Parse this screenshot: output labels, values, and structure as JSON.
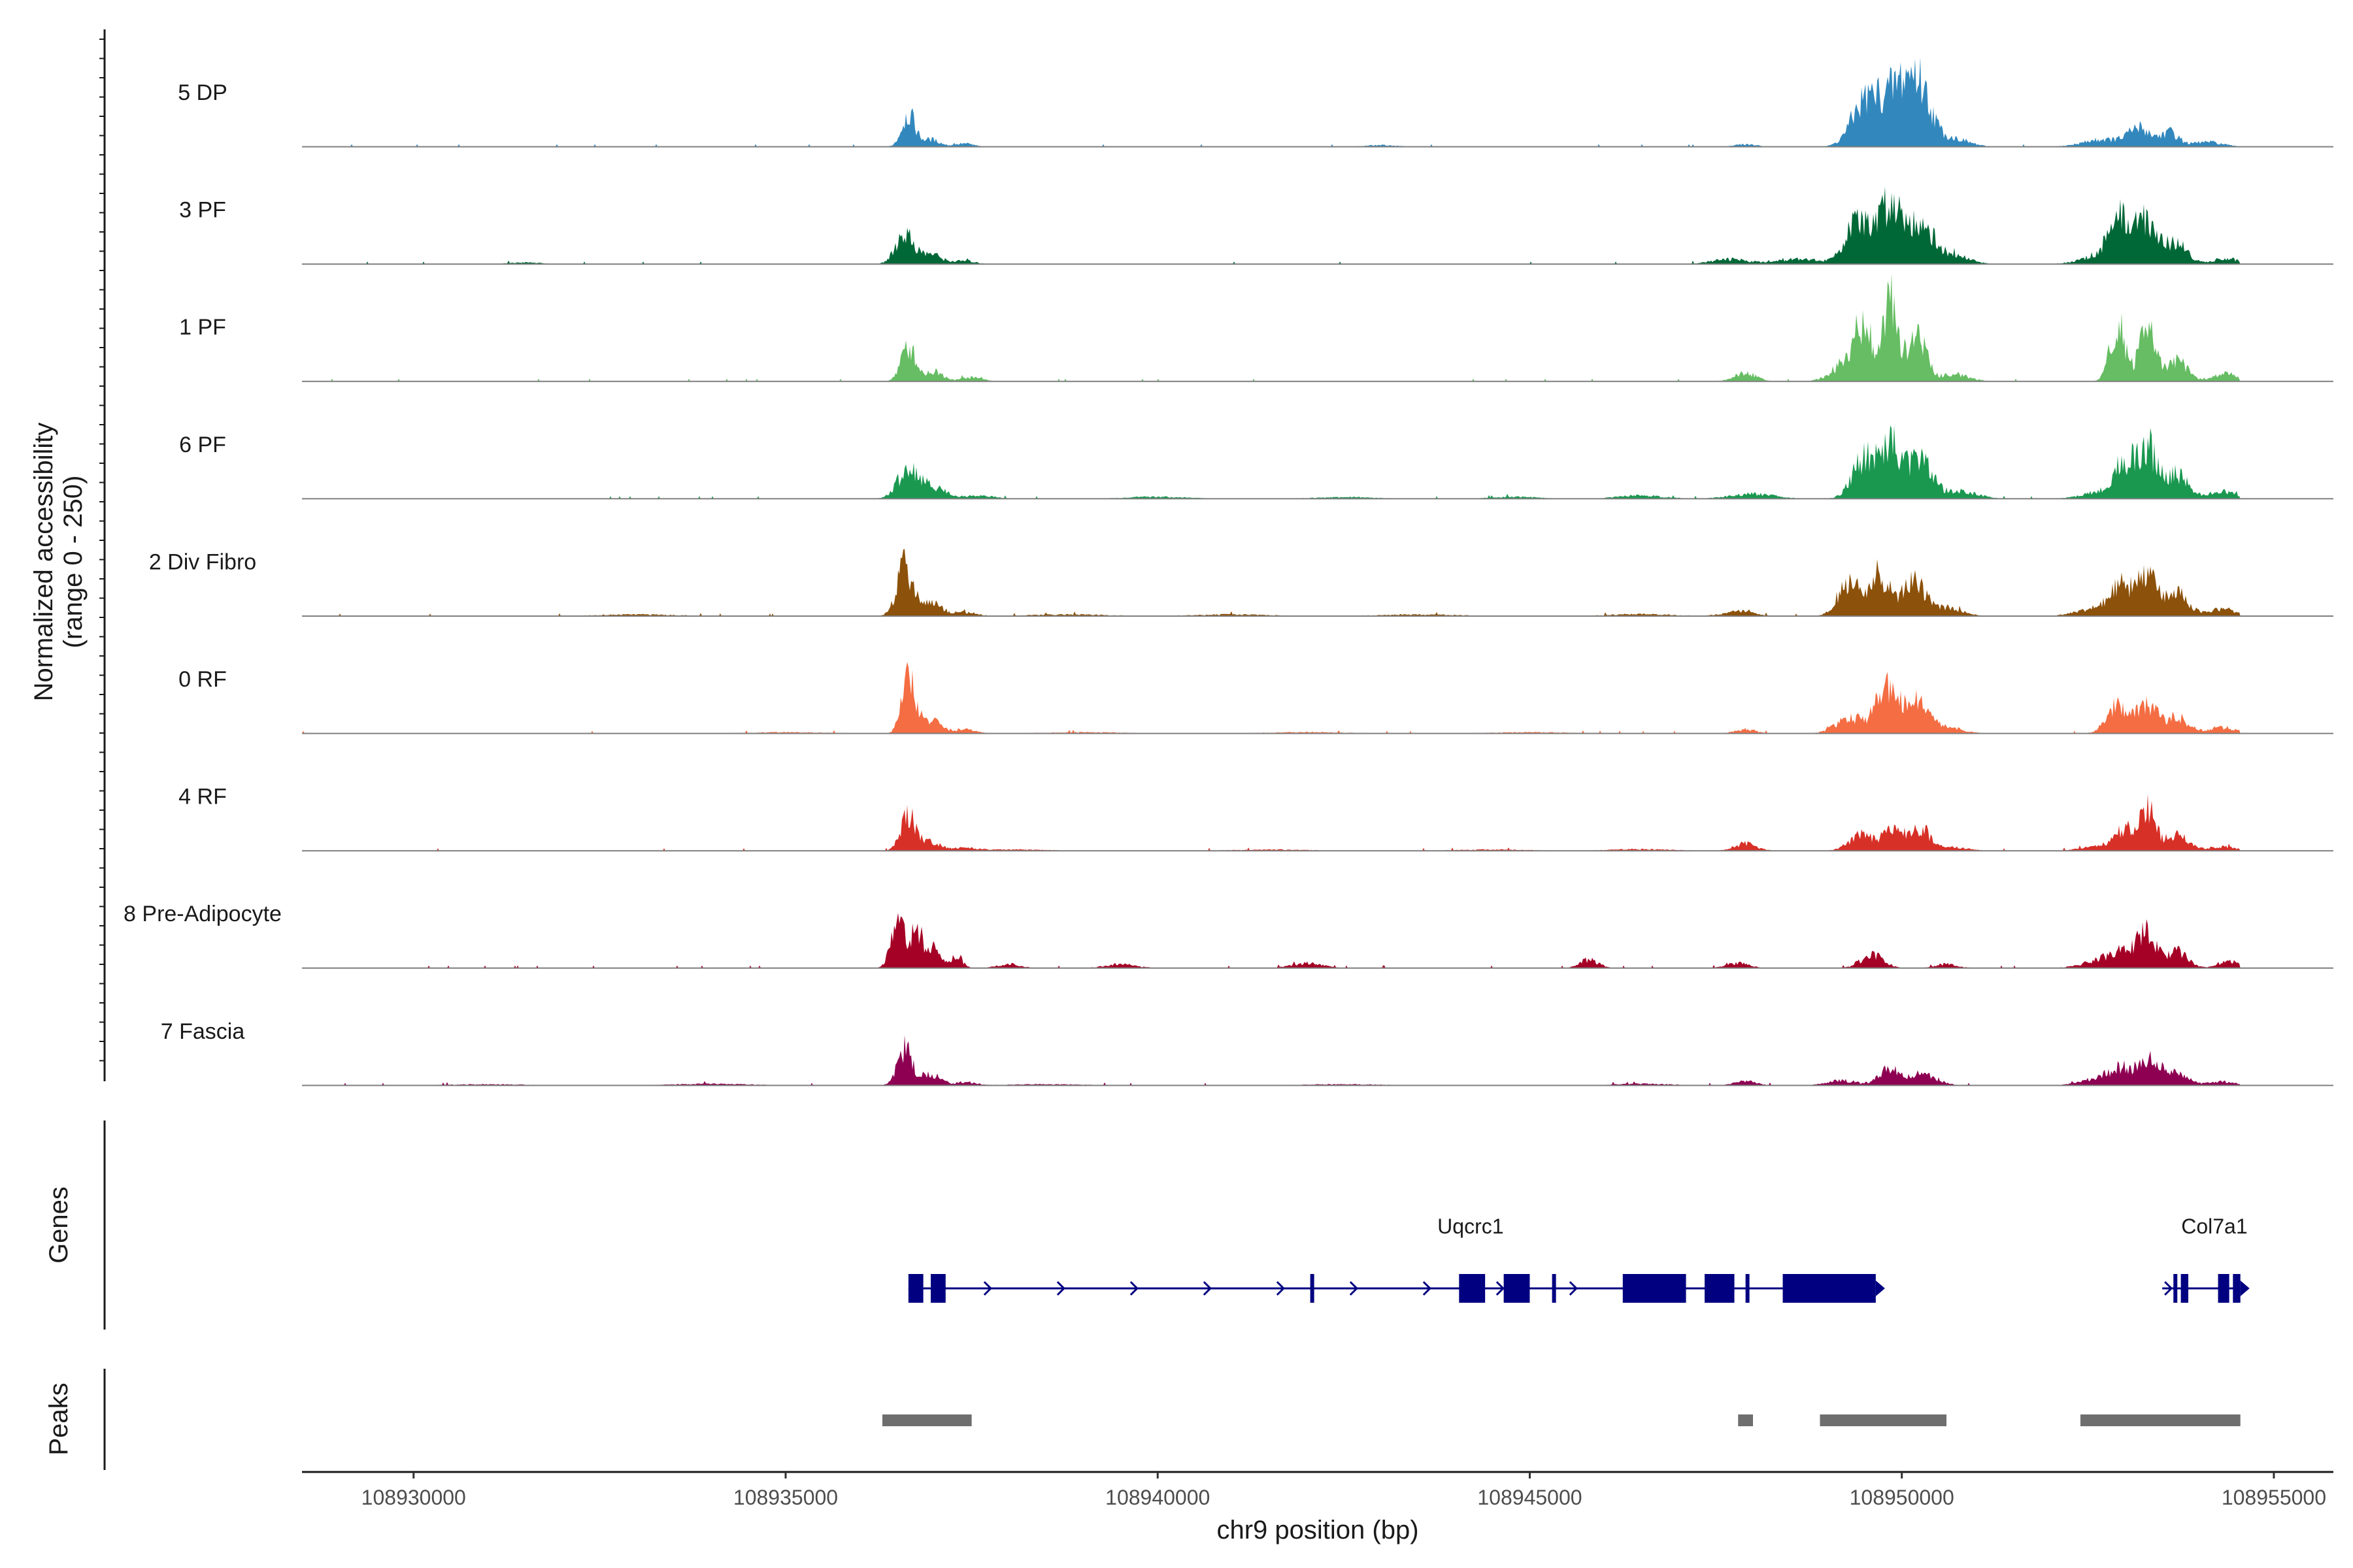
{
  "chart_data": {
    "type": "area",
    "title": "",
    "xlabel": "chr9 position (bp)",
    "ylabel_line1": "Normalized accessibility",
    "ylabel_line2": "(range 0 - 250)",
    "xlim": [
      108928500,
      108955800
    ],
    "ylim": [
      0,
      250
    ],
    "xticks": [
      108930000,
      108935000,
      108940000,
      108945000,
      108950000,
      108955000
    ],
    "xtick_labels": [
      "108930000",
      "108935000",
      "108940000",
      "108945000",
      "108950000",
      "108955000"
    ],
    "coverage_extent": [
      108928500,
      108954550
    ],
    "series": [
      {
        "name": "5 DP",
        "color": "#3288bd",
        "peaks": [
          [
            108936650,
            80,
            90
          ],
          [
            108936950,
            18,
            120
          ],
          [
            108937400,
            8,
            120
          ],
          [
            108943000,
            4,
            200
          ],
          [
            108947900,
            6,
            150
          ],
          [
            108949500,
            105,
            180
          ],
          [
            108949950,
            140,
            220
          ],
          [
            108950250,
            110,
            160
          ],
          [
            108950700,
            20,
            200
          ],
          [
            108952700,
            18,
            260
          ],
          [
            108953200,
            45,
            150
          ],
          [
            108953600,
            35,
            120
          ],
          [
            108954100,
            12,
            200
          ]
        ]
      },
      {
        "name": "3 PF",
        "color": "#006837",
        "peaks": [
          [
            108936600,
            75,
            120
          ],
          [
            108936950,
            25,
            140
          ],
          [
            108937400,
            8,
            140
          ],
          [
            108931500,
            4,
            200
          ],
          [
            108947700,
            12,
            250
          ],
          [
            108948600,
            14,
            250
          ],
          [
            108949400,
            100,
            170
          ],
          [
            108949850,
            150,
            160
          ],
          [
            108950250,
            100,
            170
          ],
          [
            108950700,
            22,
            200
          ],
          [
            108952700,
            24,
            250
          ],
          [
            108952950,
            100,
            140
          ],
          [
            108953300,
            105,
            140
          ],
          [
            108953700,
            55,
            140
          ],
          [
            108954350,
            15,
            160
          ]
        ]
      },
      {
        "name": "1 PF",
        "color": "#66bd63",
        "peaks": [
          [
            108936650,
            85,
            100
          ],
          [
            108937000,
            25,
            120
          ],
          [
            108937500,
            10,
            150
          ],
          [
            108947900,
            20,
            150
          ],
          [
            108949300,
            55,
            200
          ],
          [
            108949500,
            110,
            120
          ],
          [
            108949850,
            200,
            100
          ],
          [
            108950200,
            120,
            120
          ],
          [
            108950700,
            18,
            200
          ],
          [
            108952900,
            145,
            100
          ],
          [
            108953300,
            130,
            110
          ],
          [
            108953700,
            50,
            140
          ],
          [
            108954350,
            20,
            150
          ]
        ]
      },
      {
        "name": "6 PF",
        "color": "#1a9850",
        "peaks": [
          [
            108936650,
            75,
            140
          ],
          [
            108937000,
            28,
            160
          ],
          [
            108937600,
            8,
            200
          ],
          [
            108940000,
            5,
            400
          ],
          [
            108942500,
            4,
            400
          ],
          [
            108944800,
            5,
            300
          ],
          [
            108946500,
            8,
            300
          ],
          [
            108948000,
            12,
            300
          ],
          [
            108949500,
            100,
            160
          ],
          [
            108949850,
            125,
            140
          ],
          [
            108950250,
            95,
            160
          ],
          [
            108950800,
            18,
            220
          ],
          [
            108952700,
            18,
            250
          ],
          [
            108953000,
            80,
            140
          ],
          [
            108953300,
            120,
            130
          ],
          [
            108953700,
            60,
            150
          ],
          [
            108954300,
            18,
            180
          ]
        ]
      },
      {
        "name": "2 Div Fibro",
        "color": "#8c510a",
        "peaks": [
          [
            108936600,
            120,
            110
          ],
          [
            108936950,
            35,
            140
          ],
          [
            108937400,
            10,
            150
          ],
          [
            108933000,
            4,
            500
          ],
          [
            108938800,
            4,
            500
          ],
          [
            108941000,
            4,
            500
          ],
          [
            108943500,
            4,
            500
          ],
          [
            108946500,
            5,
            400
          ],
          [
            108947800,
            12,
            200
          ],
          [
            108949300,
            80,
            150
          ],
          [
            108949700,
            100,
            130
          ],
          [
            108950150,
            85,
            150
          ],
          [
            108950600,
            22,
            200
          ],
          [
            108952600,
            18,
            250
          ],
          [
            108952950,
            75,
            140
          ],
          [
            108953300,
            100,
            130
          ],
          [
            108953700,
            55,
            150
          ],
          [
            108954300,
            18,
            180
          ]
        ]
      },
      {
        "name": "0 RF",
        "color": "#f46d43",
        "peaks": [
          [
            108936650,
            140,
            90
          ],
          [
            108936950,
            35,
            130
          ],
          [
            108937400,
            10,
            150
          ],
          [
            108935000,
            3,
            500
          ],
          [
            108939000,
            3,
            500
          ],
          [
            108942000,
            3,
            500
          ],
          [
            108945000,
            3,
            500
          ],
          [
            108947900,
            10,
            150
          ],
          [
            108949300,
            40,
            180
          ],
          [
            108949800,
            110,
            150
          ],
          [
            108950200,
            75,
            150
          ],
          [
            108950600,
            15,
            200
          ],
          [
            108952900,
            75,
            140
          ],
          [
            108953300,
            70,
            130
          ],
          [
            108953700,
            40,
            150
          ],
          [
            108954300,
            15,
            180
          ]
        ]
      },
      {
        "name": "4 RF",
        "color": "#d73027",
        "peaks": [
          [
            108936650,
            90,
            100
          ],
          [
            108936950,
            22,
            140
          ],
          [
            108937400,
            6,
            150
          ],
          [
            108938000,
            3,
            500
          ],
          [
            108941500,
            3,
            500
          ],
          [
            108944500,
            3,
            500
          ],
          [
            108946500,
            4,
            400
          ],
          [
            108947900,
            18,
            150
          ],
          [
            108949450,
            38,
            160
          ],
          [
            108949900,
            50,
            150
          ],
          [
            108950250,
            55,
            120
          ],
          [
            108950700,
            8,
            200
          ],
          [
            108952700,
            12,
            250
          ],
          [
            108953000,
            45,
            140
          ],
          [
            108953300,
            100,
            110
          ],
          [
            108953700,
            38,
            150
          ],
          [
            108954300,
            10,
            180
          ]
        ]
      },
      {
        "name": "8 Pre-Adipocyte",
        "color": "#a50026",
        "peaks": [
          [
            108936500,
            110,
            90
          ],
          [
            108936750,
            80,
            100
          ],
          [
            108937000,
            45,
            100
          ],
          [
            108937300,
            28,
            80
          ],
          [
            108938000,
            10,
            150
          ],
          [
            108939500,
            10,
            200
          ],
          [
            108942000,
            12,
            200
          ],
          [
            108945800,
            22,
            120
          ],
          [
            108947800,
            12,
            150
          ],
          [
            108949600,
            35,
            150
          ],
          [
            108950600,
            10,
            150
          ],
          [
            108952700,
            20,
            250
          ],
          [
            108953000,
            40,
            150
          ],
          [
            108953300,
            85,
            120
          ],
          [
            108953700,
            40,
            140
          ],
          [
            108954400,
            18,
            150
          ]
        ]
      },
      {
        "name": "7 Fascia",
        "color": "#8e0152",
        "peaks": [
          [
            108936600,
            90,
            100
          ],
          [
            108936950,
            30,
            120
          ],
          [
            108937400,
            8,
            150
          ],
          [
            108931000,
            3,
            500
          ],
          [
            108934000,
            4,
            500
          ],
          [
            108938500,
            3,
            500
          ],
          [
            108942500,
            3,
            500
          ],
          [
            108946500,
            4,
            400
          ],
          [
            108947900,
            10,
            150
          ],
          [
            108949200,
            12,
            200
          ],
          [
            108949850,
            40,
            150
          ],
          [
            108950300,
            28,
            180
          ],
          [
            108952700,
            20,
            250
          ],
          [
            108953000,
            35,
            160
          ],
          [
            108953350,
            60,
            130
          ],
          [
            108953700,
            30,
            150
          ],
          [
            108954300,
            10,
            180
          ]
        ]
      }
    ],
    "genes": [
      {
        "name": "Uqcrc1",
        "start": 108936650,
        "end": 108949650,
        "strand": "+",
        "color": "#000080",
        "exons": [
          [
            108936650,
            108936850
          ],
          [
            108936950,
            108937150
          ],
          [
            108942050,
            108942100
          ],
          [
            108944050,
            108944400
          ],
          [
            108944650,
            108945000
          ],
          [
            108945300,
            108945350
          ],
          [
            108946250,
            108947100
          ],
          [
            108947350,
            108947750
          ],
          [
            108947900,
            108947950
          ],
          [
            108948400,
            108949650
          ]
        ]
      },
      {
        "name": "Col7a1",
        "start": 108953500,
        "end": 108954550,
        "strand": "+",
        "color": "#000080",
        "exons": [
          [
            108953650,
            108953700
          ],
          [
            108953750,
            108953850
          ],
          [
            108954250,
            108954400
          ],
          [
            108954450,
            108954550
          ]
        ]
      }
    ],
    "peak_regions": {
      "color": "#6e6e6e",
      "regions": [
        [
          108936300,
          108937500
        ],
        [
          108947800,
          108948000
        ],
        [
          108948900,
          108950600
        ],
        [
          108952400,
          108954550
        ]
      ]
    },
    "panel_labels": {
      "genes": "Genes",
      "peaks": "Peaks"
    }
  }
}
